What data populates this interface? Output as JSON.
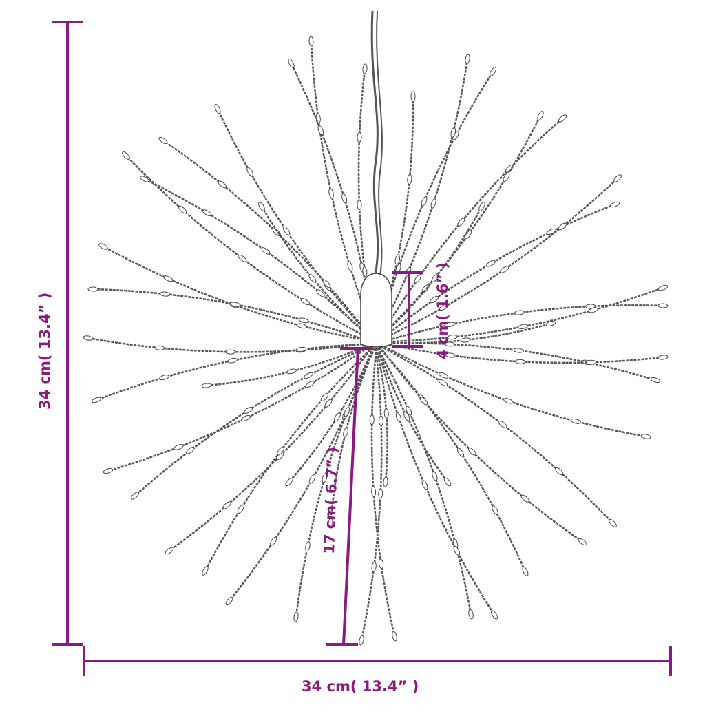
{
  "dimensions": {
    "height_label": "34 cm( 13.4” )",
    "width_label": "34 cm( 13.4” )",
    "cap_label": "4 cm( 1.6” )",
    "strand_label": "17 cm( 6.7” )"
  },
  "colors": {
    "dimension": "#8b1a80",
    "wire": "#555555"
  },
  "product": "starburst-led-wire-light"
}
